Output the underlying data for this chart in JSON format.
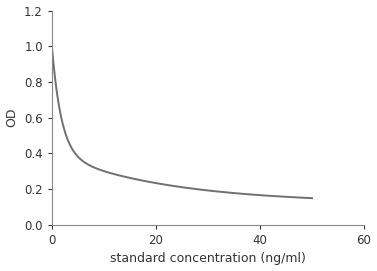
{
  "xlabel": "standard concentration (ng/ml)",
  "ylabel": "OD",
  "xlim": [
    0,
    60
  ],
  "ylim": [
    0,
    1.2
  ],
  "xticks": [
    0,
    20,
    40,
    60
  ],
  "yticks": [
    0,
    0.2,
    0.4,
    0.6,
    0.8,
    1.0,
    1.2
  ],
  "line_color": "#707070",
  "line_width": 1.4,
  "background_color": "#ffffff",
  "curve_params": {
    "A": 0.12,
    "B1": 0.6,
    "k1": 0.55,
    "B2": 0.28,
    "k2": 0.045
  }
}
